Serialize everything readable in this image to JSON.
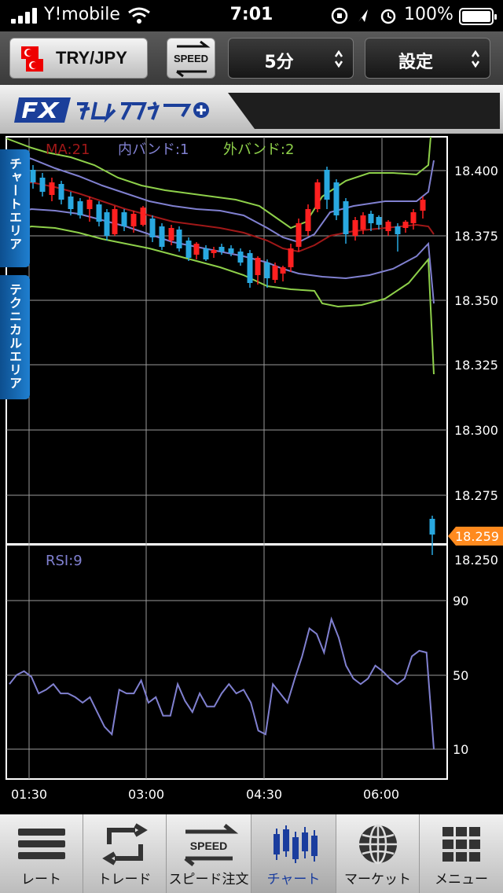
{
  "status_bar": {
    "carrier": "Y!mobile",
    "time": "7:01",
    "battery": "100%"
  },
  "toolbar": {
    "pair": "TRY/JPY",
    "speed_label": "SPEED",
    "interval": "5分",
    "settings": "設定"
  },
  "side_tabs": {
    "chart_area": "チャートエリア",
    "technical_area": "テクニカルエリア"
  },
  "chart": {
    "legend": {
      "ma": "MA:21",
      "inner_band": "内バンド:1",
      "outer_band": "外バンド:2"
    },
    "price_ticks": [
      "18.400",
      "18.375",
      "18.350",
      "18.325",
      "18.300",
      "18.275",
      "18.250"
    ],
    "current_price": "18.259",
    "rsi_label": "RSI:9",
    "rsi_ticks": [
      "90",
      "50",
      "10"
    ],
    "time_ticks": [
      "01:30",
      "03:00",
      "04:30",
      "06:00"
    ],
    "colors": {
      "up_candle": "#ff2020",
      "down_candle": "#29a8e0",
      "ma": "#a01818",
      "inner_band": "#8080d0",
      "outer_band": "#8ed04a",
      "rsi_line": "#8080d0",
      "price_tag": "#ff8a1e"
    }
  },
  "chart_data": {
    "type": "line",
    "ylim_price": [
      18.245,
      18.42
    ],
    "ylim_rsi": [
      0,
      100
    ],
    "grid": true,
    "rsi": [
      45,
      50,
      52,
      49,
      40,
      42,
      45,
      40,
      40,
      38,
      35,
      38,
      30,
      22,
      18,
      42,
      40,
      40,
      47,
      35,
      38,
      28,
      28,
      45,
      36,
      30,
      40,
      33,
      33,
      40,
      45,
      40,
      42,
      35,
      20,
      18,
      45,
      40,
      35,
      48,
      60,
      75,
      72,
      62,
      80,
      70,
      55,
      48,
      45,
      48,
      55,
      52,
      48,
      45,
      48,
      60,
      63,
      62,
      10
    ]
  },
  "tabbar": {
    "items": [
      {
        "label": "レート"
      },
      {
        "label": "トレード"
      },
      {
        "label": "スピード注文",
        "speed": "SPEED"
      },
      {
        "label": "チャート"
      },
      {
        "label": "マーケット"
      },
      {
        "label": "メニュー"
      }
    ]
  }
}
